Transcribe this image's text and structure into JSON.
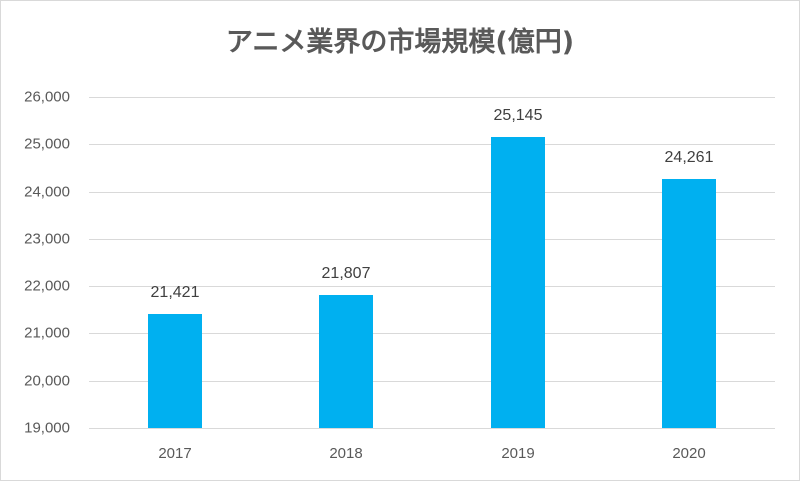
{
  "chart_data": {
    "type": "bar",
    "title": "アニメ業界の市場規模(億円)",
    "categories": [
      "2017",
      "2018",
      "2019",
      "2020"
    ],
    "values": [
      21421,
      21807,
      25145,
      24261
    ],
    "value_labels": [
      "21,421",
      "21,807",
      "25,145",
      "24,261"
    ],
    "xlabel": "",
    "ylabel": "",
    "ylim": [
      19000,
      26000
    ],
    "yticks": [
      "26,000",
      "25,000",
      "24,000",
      "23,000",
      "22,000",
      "21,000",
      "20,000",
      "19,000"
    ],
    "grid": true,
    "legend": "none",
    "bar_color": "#00b0f0"
  }
}
